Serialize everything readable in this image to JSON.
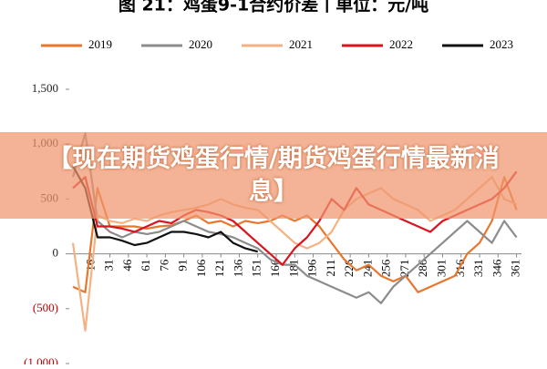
{
  "chart_data": {
    "type": "line",
    "title": "图 21：鸡蛋9-1合约价差丨单位：元/吨",
    "x": [
      1,
      11,
      21,
      31,
      41,
      51,
      61,
      71,
      81,
      91,
      101,
      111,
      121,
      131,
      141,
      151,
      161,
      171,
      181,
      191,
      201,
      211,
      221,
      231,
      241,
      251,
      261,
      271,
      281,
      291,
      301,
      311,
      321,
      331,
      341,
      351,
      361
    ],
    "series": [
      {
        "name": "2019",
        "color": "#e8772e",
        "values": [
          -300,
          -350,
          600,
          250,
          250,
          250,
          230,
          250,
          260,
          300,
          350,
          280,
          300,
          250,
          300,
          280,
          300,
          350,
          300,
          350,
          250,
          100,
          -50,
          -150,
          -100,
          -200,
          -250,
          -200,
          -350,
          -300,
          -250,
          -200,
          0,
          100,
          300,
          700,
          400
        ]
      },
      {
        "name": "2020",
        "color": "#8c8c8c",
        "values": [
          700,
          1100,
          300,
          200,
          150,
          200,
          180,
          200,
          250,
          300,
          250,
          200,
          180,
          150,
          100,
          50,
          -50,
          -100,
          -100,
          -200,
          -250,
          -300,
          -350,
          -400,
          -350,
          -450,
          -300,
          -200,
          -100,
          0,
          100,
          200,
          300,
          200,
          100,
          300,
          150
        ]
      },
      {
        "name": "2021",
        "color": "#f5b183",
        "values": [
          100,
          -700,
          350,
          300,
          280,
          320,
          300,
          350,
          380,
          400,
          420,
          450,
          500,
          450,
          420,
          400,
          300,
          200,
          100,
          50,
          100,
          200,
          400,
          500,
          550,
          600,
          500,
          450,
          400,
          300,
          350,
          400,
          500,
          600,
          700,
          500,
          450
        ]
      },
      {
        "name": "2022",
        "color": "#d9141e",
        "values": [
          600,
          700,
          250,
          250,
          230,
          200,
          250,
          300,
          280,
          350,
          400,
          380,
          350,
          300,
          200,
          100,
          0,
          -100,
          50,
          150,
          300,
          500,
          400,
          600,
          450,
          400,
          350,
          300,
          250,
          200,
          300,
          350,
          400,
          450,
          500,
          600,
          750
        ]
      },
      {
        "name": "2023",
        "color": "#111111",
        "values": [
          800,
          600,
          150,
          150,
          120,
          80,
          100,
          150,
          200,
          200,
          180,
          150,
          200,
          100,
          50,
          20,
          null,
          null,
          null,
          null,
          null,
          null,
          null,
          null,
          null,
          null,
          null,
          null,
          null,
          null,
          null,
          null,
          null,
          null,
          null,
          null,
          null
        ]
      }
    ],
    "xlim": [
      1,
      365
    ],
    "xticks": [
      16,
      31,
      46,
      61,
      76,
      91,
      106,
      121,
      136,
      151,
      166,
      181,
      196,
      211,
      226,
      241,
      256,
      271,
      286,
      301,
      316,
      331,
      346,
      361
    ],
    "ylim": [
      -1000,
      1500
    ],
    "yticks": [
      {
        "value": 1500,
        "label": "1,500"
      },
      {
        "value": 1000,
        "label": "1,000"
      },
      500,
      0,
      {
        "value": -500,
        "label": "(500)"
      },
      {
        "value": -1000,
        "label": "(1,000)"
      }
    ]
  },
  "banner": {
    "text": "【现在期货鸡蛋行情/期货鸡蛋行情最新消息】"
  }
}
